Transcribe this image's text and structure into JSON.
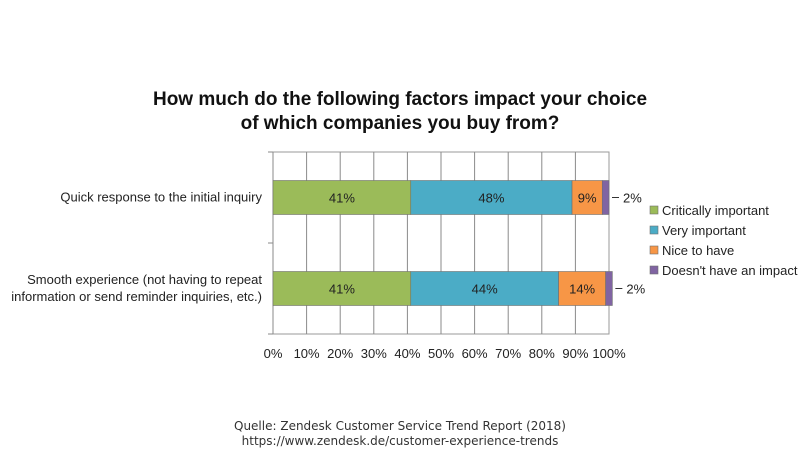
{
  "header": {
    "title_line1": "How much do the following factors impact your choice",
    "title_line2": "of which companies you buy from?"
  },
  "footer": {
    "source_line1": "Quelle: Zendesk Customer Service Trend Report (2018)",
    "source_line2": "https://www.zendesk.de/customer-experience-trends"
  },
  "chart_data": {
    "type": "bar",
    "orientation": "horizontal",
    "stacked": true,
    "percent_axis": true,
    "categories": [
      [
        "Quick response to the initial inquiry"
      ],
      [
        "Smooth experience (not having to repeat",
        "information or send reminder inquiries, etc.)"
      ]
    ],
    "series": [
      {
        "name": "Critically important",
        "values": [
          41,
          41
        ],
        "color": "#9bbb59",
        "data_labels": [
          "41%",
          "41%"
        ]
      },
      {
        "name": "Very important",
        "values": [
          48,
          44
        ],
        "color": "#4bacc6",
        "data_labels": [
          "48%",
          "44%"
        ]
      },
      {
        "name": "Nice to have",
        "values": [
          9,
          14
        ],
        "color": "#f79646",
        "data_labels": [
          "9%",
          "14%"
        ]
      },
      {
        "name": "Doesn't have an impact",
        "values": [
          2,
          2
        ],
        "color": "#8064a2",
        "data_labels": [
          "2%",
          "2%"
        ]
      }
    ],
    "xlim": [
      0,
      100
    ],
    "x_ticks": [
      "0%",
      "10%",
      "20%",
      "30%",
      "40%",
      "50%",
      "60%",
      "70%",
      "80%",
      "90%",
      "100%"
    ],
    "grid": true,
    "legend": "right"
  }
}
